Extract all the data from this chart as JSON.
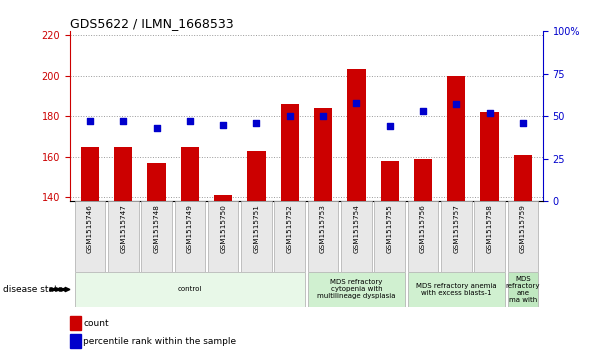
{
  "title": "GDS5622 / ILMN_1668533",
  "samples": [
    "GSM1515746",
    "GSM1515747",
    "GSM1515748",
    "GSM1515749",
    "GSM1515750",
    "GSM1515751",
    "GSM1515752",
    "GSM1515753",
    "GSM1515754",
    "GSM1515755",
    "GSM1515756",
    "GSM1515757",
    "GSM1515758",
    "GSM1515759"
  ],
  "counts": [
    165,
    165,
    157,
    165,
    141,
    163,
    186,
    184,
    203,
    158,
    159,
    200,
    182,
    161
  ],
  "percentile_ranks": [
    47,
    47,
    43,
    47,
    45,
    46,
    50,
    50,
    58,
    44,
    53,
    57,
    52,
    46
  ],
  "ylim_left": [
    138,
    222
  ],
  "ylim_right": [
    0,
    100
  ],
  "yticks_left": [
    140,
    160,
    180,
    200,
    220
  ],
  "yticks_right": [
    0,
    25,
    50,
    75,
    100
  ],
  "bar_color": "#cc0000",
  "dot_color": "#0000cc",
  "bar_width": 0.55,
  "dot_size": 18,
  "disease_groups": [
    {
      "label": "control",
      "start": 0,
      "end": 7,
      "color": "#e8f8e8"
    },
    {
      "label": "MDS refractory\ncytopenia with\nmultilineage dysplasia",
      "start": 7,
      "end": 10,
      "color": "#d0f0d0"
    },
    {
      "label": "MDS refractory anemia\nwith excess blasts-1",
      "start": 10,
      "end": 13,
      "color": "#d0f0d0"
    },
    {
      "label": "MDS\nrefractory\nane\nma with",
      "start": 13,
      "end": 14,
      "color": "#c0e8c0"
    }
  ],
  "disease_state_label": "disease state",
  "legend_count_label": "count",
  "legend_percentile_label": "percentile rank within the sample",
  "grid_color": "#999999",
  "bg_color": "#e8e8e8",
  "title_fontsize": 9
}
